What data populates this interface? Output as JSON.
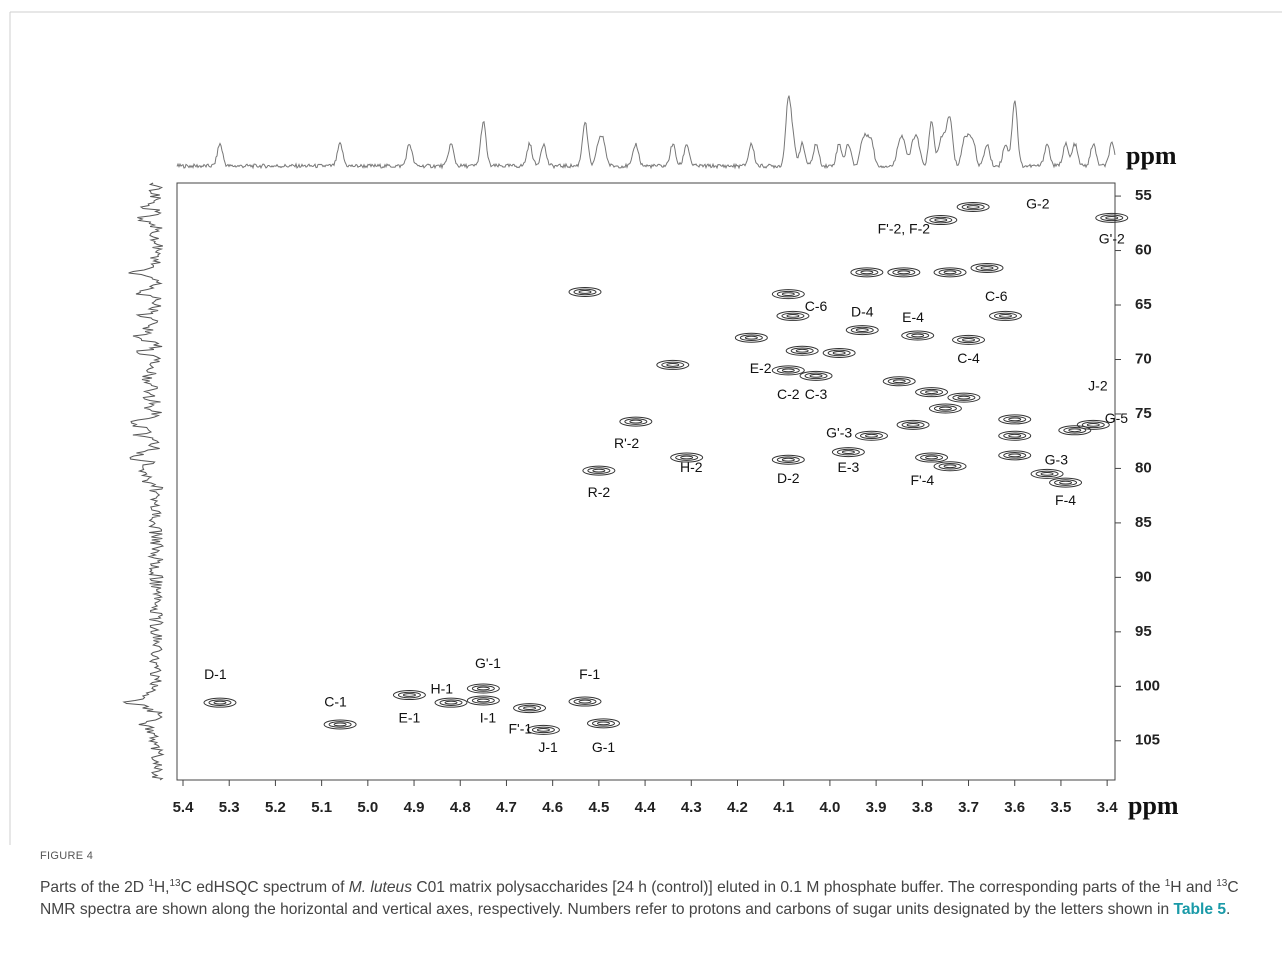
{
  "chart_data": {
    "type": "scatter",
    "xlabel": "ppm",
    "ylabel": "ppm",
    "xlim": [
      5.413,
      3.383
    ],
    "ylim": [
      108.6,
      53.8
    ],
    "xticks": [
      5.4,
      5.3,
      5.2,
      5.1,
      {
        "value": 5.0,
        "label": "5.0"
      },
      4.9,
      4.8,
      4.7,
      4.6,
      4.5,
      4.4,
      4.3,
      4.2,
      4.1,
      {
        "value": 4.0,
        "label": "4.0"
      },
      3.9,
      3.8,
      3.7,
      3.6,
      3.5,
      3.4
    ],
    "yticks": [
      55,
      60,
      65,
      70,
      75,
      80,
      85,
      90,
      95,
      100,
      105
    ],
    "color": "#333333",
    "x": [
      5.32,
      5.06,
      4.91,
      4.82,
      4.75,
      4.75,
      4.65,
      4.62,
      4.53,
      4.49,
      4.5,
      4.42,
      4.31,
      4.53,
      4.34,
      4.09,
      4.03,
      4.09,
      4.09,
      4.08,
      4.06,
      3.93,
      3.81,
      3.98,
      3.91,
      3.82,
      3.96,
      3.78,
      3.74,
      3.7,
      3.62,
      3.92,
      3.84,
      3.74,
      3.66,
      3.76,
      3.69,
      3.39,
      3.85,
      3.78,
      3.71,
      3.75,
      3.6,
      3.6,
      3.6,
      3.53,
      3.49,
      3.47,
      3.43,
      4.17
    ],
    "y": [
      101.5,
      103.5,
      100.8,
      101.5,
      100.2,
      101.3,
      102,
      104,
      101.4,
      103.4,
      80.2,
      75.7,
      79,
      63.8,
      70.5,
      71,
      71.5,
      79.2,
      64,
      66,
      69.2,
      67.3,
      67.8,
      69.4,
      77,
      76,
      78.5,
      79,
      79.8,
      68.2,
      66,
      62,
      62,
      62,
      61.6,
      57.2,
      56,
      57,
      72,
      73,
      73.5,
      74.5,
      75.5,
      77,
      78.8,
      80.5,
      81.3,
      76.5,
      76,
      68
    ],
    "annotations": [
      {
        "text": "D-1",
        "x": 5.33,
        "y": 99
      },
      {
        "text": "C-1",
        "x": 5.07,
        "y": 101.5
      },
      {
        "text": "E-1",
        "x": 4.91,
        "y": 103
      },
      {
        "text": "H-1",
        "x": 4.84,
        "y": 100.3
      },
      {
        "text": "G'-1",
        "x": 4.74,
        "y": 98
      },
      {
        "text": "I-1",
        "x": 4.74,
        "y": 103
      },
      {
        "text": "F'-1",
        "x": 4.67,
        "y": 104
      },
      {
        "text": "J-1",
        "x": 4.61,
        "y": 105.7
      },
      {
        "text": "F-1",
        "x": 4.52,
        "y": 99
      },
      {
        "text": "G-1",
        "x": 4.49,
        "y": 105.7
      },
      {
        "text": "R-2",
        "x": 4.5,
        "y": 82.3
      },
      {
        "text": "R'-2",
        "x": 4.44,
        "y": 77.8
      },
      {
        "text": "H-2",
        "x": 4.3,
        "y": 80
      },
      {
        "text": "E-2",
        "x": 4.15,
        "y": 70.9
      },
      {
        "text": "C-2",
        "x": 4.09,
        "y": 73.3
      },
      {
        "text": "C-3",
        "x": 4.03,
        "y": 73.3
      },
      {
        "text": "D-2",
        "x": 4.09,
        "y": 81
      },
      {
        "text": "C-6",
        "x": 4.03,
        "y": 65.2
      },
      {
        "text": "D-4",
        "x": 3.93,
        "y": 65.7
      },
      {
        "text": "E-4",
        "x": 3.82,
        "y": 66.2
      },
      {
        "text": "G'-3",
        "x": 3.98,
        "y": 76.8
      },
      {
        "text": "E-3",
        "x": 3.96,
        "y": 80
      },
      {
        "text": "F'-4",
        "x": 3.8,
        "y": 81.2
      },
      {
        "text": "C-4",
        "x": 3.7,
        "y": 70
      },
      {
        "text": "C-6",
        "x": 3.64,
        "y": 64.3
      },
      {
        "text": "F'-2, F-2",
        "x": 3.84,
        "y": 58.1
      },
      {
        "text": "G-2",
        "x": 3.55,
        "y": 55.8
      },
      {
        "text": "G'-2",
        "x": 3.39,
        "y": 59
      },
      {
        "text": "J-2",
        "x": 3.42,
        "y": 72.5
      },
      {
        "text": "G-5",
        "x": 3.38,
        "y": 75.5
      },
      {
        "text": "G-3",
        "x": 3.51,
        "y": 79.3
      },
      {
        "text": "F-4",
        "x": 3.49,
        "y": 83
      }
    ]
  },
  "figure": {
    "label": "FIGURE 4",
    "caption": [
      "Parts of the 2D ",
      "1",
      "H,",
      "13",
      "C edHSQC spectrum of ",
      "M. luteus",
      " C01 matrix polysaccharides [24 h (control)] eluted in 0.1 M phosphate buffer. The corresponding parts of the ",
      "1",
      "H and ",
      "13",
      "C NMR spectra are shown along the horizontal and vertical axes, respectively. Numbers refer to protons and carbons of sugar units designated by the letters shown in ",
      "Table 5",
      "."
    ]
  }
}
